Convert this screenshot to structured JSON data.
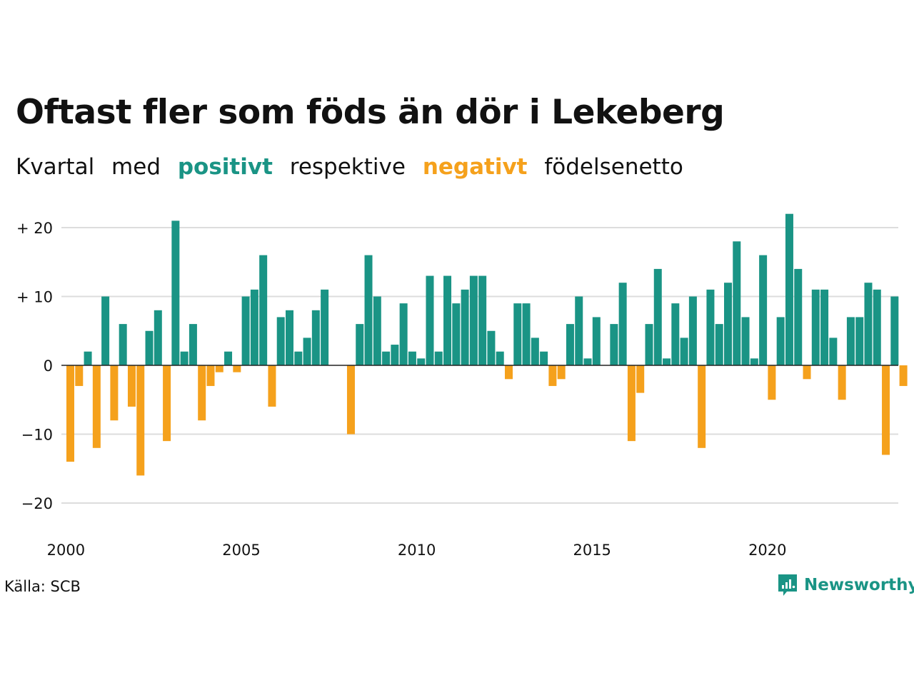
{
  "title": "Oftast fler som föds än dör i Lekeberg",
  "subtitle": {
    "part1": "Kvartal",
    "part2": "med",
    "positive": "positivt",
    "part3": "respektive",
    "negative": "negativt",
    "part4": "födelsenetto"
  },
  "source": "Källa: SCB",
  "brand": "Newsworthy",
  "colors": {
    "positive": "#1a9485",
    "negative": "#f5a11c",
    "grid": "#dddddd",
    "baseline": "#222222"
  },
  "chart_data": {
    "type": "bar",
    "x_start": "2000Q1",
    "values": [
      -14,
      -3,
      2,
      -12,
      10,
      -8,
      6,
      -6,
      -16,
      5,
      8,
      -11,
      21,
      2,
      6,
      -8,
      -3,
      -1,
      2,
      -1,
      10,
      11,
      16,
      -6,
      7,
      8,
      2,
      4,
      8,
      11,
      0,
      0,
      -10,
      6,
      16,
      10,
      2,
      3,
      9,
      2,
      1,
      13,
      2,
      13,
      9,
      11,
      13,
      13,
      5,
      2,
      -2,
      9,
      9,
      4,
      2,
      -3,
      -2,
      6,
      10,
      1,
      7,
      0,
      6,
      12,
      -11,
      -4,
      6,
      14,
      1,
      9,
      4,
      10,
      -12,
      11,
      6,
      12,
      18,
      7,
      1,
      16,
      -5,
      7,
      22,
      14,
      -2,
      11,
      11,
      4,
      -5,
      7,
      7,
      12,
      11,
      -13,
      10,
      -3
    ],
    "ylim": [
      -24,
      24
    ],
    "yticks": [
      20,
      10,
      0,
      -10,
      -20
    ],
    "ytick_labels": [
      "+ 20",
      "+ 10",
      "0",
      "−10",
      "−20"
    ],
    "xtick_years": [
      2000,
      2005,
      2010,
      2015,
      2020
    ],
    "xtick_labels": [
      "2000",
      "2005",
      "2010",
      "2015",
      "2020"
    ],
    "grid": true
  }
}
